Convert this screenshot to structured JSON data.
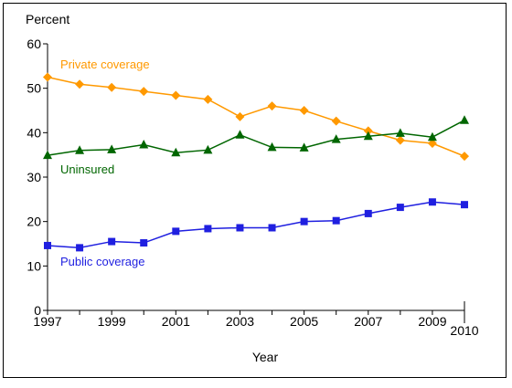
{
  "chart_data": {
    "type": "line",
    "title": "",
    "ylabel": "Percent",
    "xlabel": "Year",
    "ylim": [
      0,
      60
    ],
    "yticks": [
      0,
      10,
      20,
      30,
      40,
      50,
      60
    ],
    "xlim": [
      1997,
      2010
    ],
    "xtick_labels": [
      "1997",
      "1999",
      "2001",
      "2003",
      "2005",
      "2007",
      "2009",
      "2010"
    ],
    "x": [
      1997,
      1998,
      1999,
      2000,
      2001,
      2002,
      2003,
      2004,
      2005,
      2006,
      2007,
      2008,
      2009,
      2010
    ],
    "grid": false,
    "series": [
      {
        "name": "Private coverage",
        "color": "#ff9900",
        "marker": "diamond",
        "values": [
          52.5,
          50.9,
          50.2,
          49.3,
          48.4,
          47.5,
          43.6,
          46.0,
          45.0,
          42.6,
          40.4,
          38.3,
          37.6,
          34.7
        ]
      },
      {
        "name": "Uninsured",
        "color": "#006600",
        "marker": "triangle",
        "values": [
          34.9,
          36.0,
          36.2,
          37.3,
          35.5,
          36.1,
          39.5,
          36.7,
          36.6,
          38.5,
          39.2,
          39.9,
          39.0,
          42.8
        ]
      },
      {
        "name": "Public coverage",
        "color": "#1f1fe0",
        "marker": "square",
        "values": [
          14.6,
          14.1,
          15.5,
          15.2,
          17.8,
          18.4,
          18.6,
          18.6,
          20.0,
          20.2,
          21.8,
          23.2,
          24.4,
          23.8
        ]
      }
    ]
  }
}
